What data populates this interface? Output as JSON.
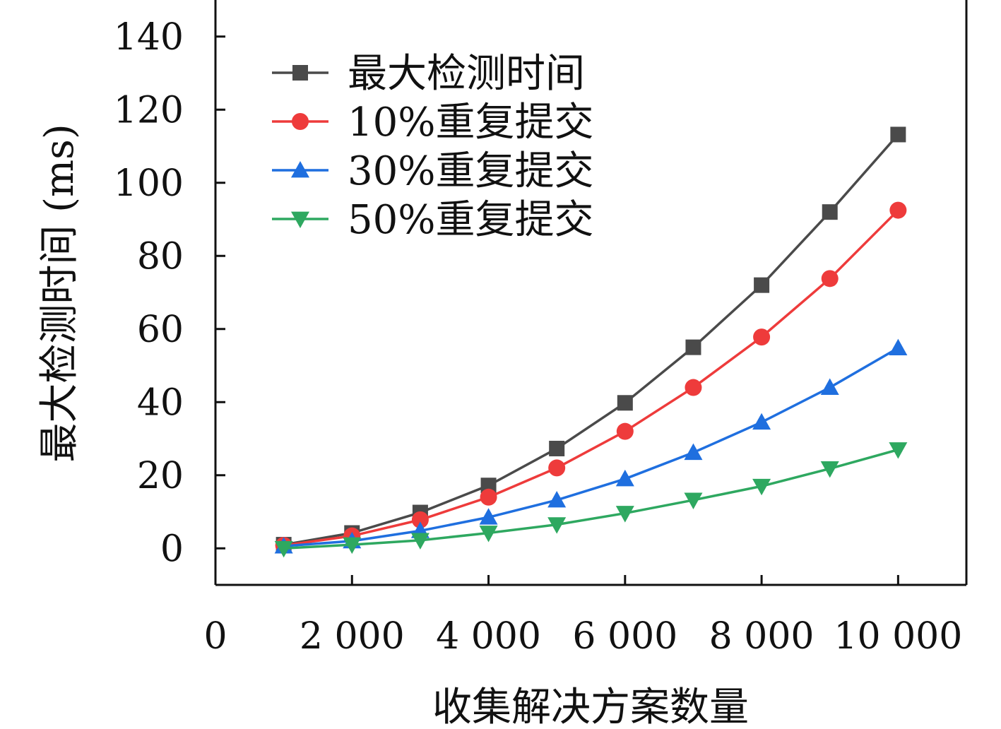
{
  "chart_data": {
    "type": "line",
    "title": "",
    "xlabel": "收集解决方案数量",
    "ylabel": "最大检测时间 (ms)",
    "xlim": [
      0,
      11000
    ],
    "ylim": [
      -10,
      150
    ],
    "x_ticks": [
      0,
      2000,
      4000,
      6000,
      8000,
      10000
    ],
    "x_tick_labels": [
      "0",
      "2 000",
      "4 000",
      "6 000",
      "8 000",
      "10 000"
    ],
    "y_ticks": [
      0,
      20,
      40,
      60,
      80,
      100,
      120,
      140
    ],
    "y_tick_labels": [
      "0",
      "20",
      "40",
      "60",
      "80",
      "100",
      "120",
      "140"
    ],
    "grid": false,
    "legend_position": "top-left",
    "x": [
      1000,
      2000,
      3000,
      4000,
      5000,
      6000,
      7000,
      8000,
      9000,
      10000
    ],
    "series": [
      {
        "name": "最大检测时间",
        "color": "#4a4a4a",
        "marker": "square",
        "values": [
          1,
          4.2,
          9.8,
          17.2,
          27.3,
          39.8,
          55,
          72,
          92,
          113.2
        ]
      },
      {
        "name": "10%重复提交",
        "color": "#ee3b3b",
        "marker": "circle",
        "values": [
          0.8,
          3.4,
          7.8,
          14,
          22,
          32,
          44,
          57.8,
          73.8,
          92.5
        ]
      },
      {
        "name": "30%重复提交",
        "color": "#1f6fdf",
        "marker": "triangle-up",
        "values": [
          0.6,
          2,
          4.8,
          8.5,
          13.2,
          19,
          26.2,
          34.5,
          44,
          54.8
        ]
      },
      {
        "name": "50%重复提交",
        "color": "#2ea860",
        "marker": "triangle-down",
        "values": [
          0,
          1,
          2.2,
          4.2,
          6.5,
          9.6,
          13.2,
          17,
          21.8,
          27
        ]
      }
    ]
  }
}
